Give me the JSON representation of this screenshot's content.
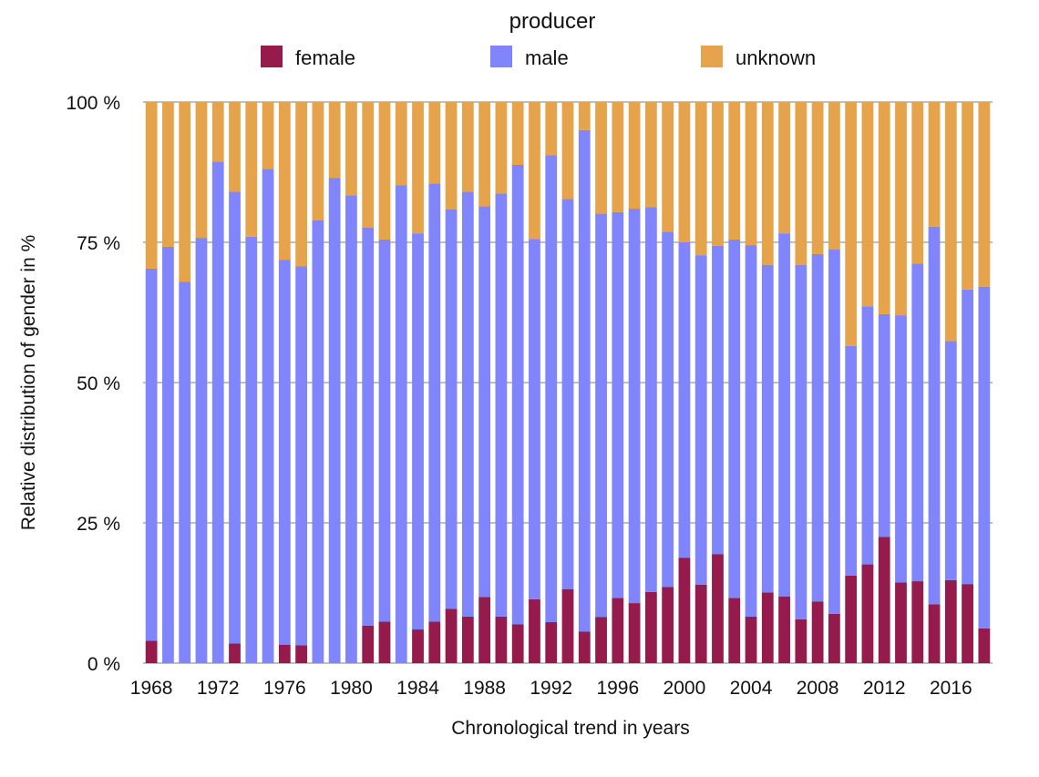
{
  "chart_data": {
    "type": "bar",
    "stacked": true,
    "legend_title": "producer",
    "legend_position": "top",
    "xlabel": "Chronological trend in years",
    "ylabel": "Relative distribution of gender in %",
    "ylim": [
      0,
      100
    ],
    "y_ticks": [
      "0 %",
      "25 %",
      "50 %",
      "75 %",
      "100 %"
    ],
    "x_tick_labels": [
      "1968",
      "1972",
      "1976",
      "1980",
      "1984",
      "1988",
      "1992",
      "1996",
      "2000",
      "2004",
      "2008",
      "2012",
      "2016"
    ],
    "grid": true,
    "categories": [
      "1968",
      "1969",
      "1970",
      "1971",
      "1972",
      "1973",
      "1974",
      "1975",
      "1976",
      "1977",
      "1978",
      "1979",
      "1980",
      "1981",
      "1982",
      "1983",
      "1984",
      "1985",
      "1986",
      "1987",
      "1988",
      "1989",
      "1990",
      "1991",
      "1992",
      "1993",
      "1994",
      "1995",
      "1996",
      "1997",
      "1998",
      "1999",
      "2000",
      "2001",
      "2002",
      "2003",
      "2004",
      "2005",
      "2006",
      "2007",
      "2008",
      "2009",
      "2010",
      "2011",
      "2012",
      "2013",
      "2014",
      "2015",
      "2016",
      "2017",
      "2018"
    ],
    "series": [
      {
        "name": "female",
        "color": "#941b4b",
        "values": [
          4,
          0,
          0,
          0,
          0,
          3.5,
          0,
          0,
          3.3,
          3.2,
          0,
          0,
          0,
          6.7,
          7.4,
          0,
          6,
          7.4,
          9.7,
          8.3,
          11.8,
          8.3,
          6.9,
          11.4,
          7.3,
          13.2,
          5.6,
          8.2,
          11.6,
          10.7,
          12.7,
          13.6,
          18.8,
          14,
          19.4,
          11.6,
          8.3,
          12.6,
          11.9,
          7.8,
          11,
          8.8,
          15.6,
          17.6,
          22.5,
          14.4,
          14.6,
          10.5,
          14.8,
          14.1,
          6.2
        ]
      },
      {
        "name": "male",
        "color": "#8085fb",
        "values": [
          66.3,
          74.2,
          68,
          75.8,
          89.4,
          80.5,
          76,
          88.1,
          68.6,
          67.5,
          78.9,
          86.5,
          83.4,
          70.9,
          68.1,
          85.2,
          70.6,
          78.1,
          71.2,
          75.7,
          69.6,
          75.4,
          81.9,
          64.2,
          83.2,
          69.5,
          89.4,
          71.9,
          68.8,
          70.3,
          68.6,
          63.3,
          56.2,
          58.7,
          55,
          63.9,
          66.2,
          58.4,
          64.7,
          63.2,
          61.9,
          64.9,
          40.9,
          46,
          39.7,
          47.6,
          56.6,
          67.3,
          42.6,
          52.5,
          60.9
        ]
      },
      {
        "name": "unknown",
        "color": "#e5a34b",
        "values": [
          29.7,
          25.8,
          32,
          24.2,
          10.6,
          16,
          24,
          11.9,
          28.1,
          29.3,
          21.1,
          13.5,
          16.6,
          22.4,
          24.5,
          14.8,
          23.4,
          14.5,
          19.1,
          16,
          18.6,
          16.3,
          11.2,
          24.4,
          9.5,
          17.3,
          5,
          19.9,
          19.6,
          19,
          18.7,
          23.1,
          25,
          27.3,
          25.6,
          24.5,
          25.5,
          29,
          23.4,
          29,
          27.1,
          26.3,
          43.5,
          36.4,
          37.8,
          38,
          28.8,
          22.2,
          42.6,
          33.4,
          32.9
        ]
      }
    ]
  }
}
